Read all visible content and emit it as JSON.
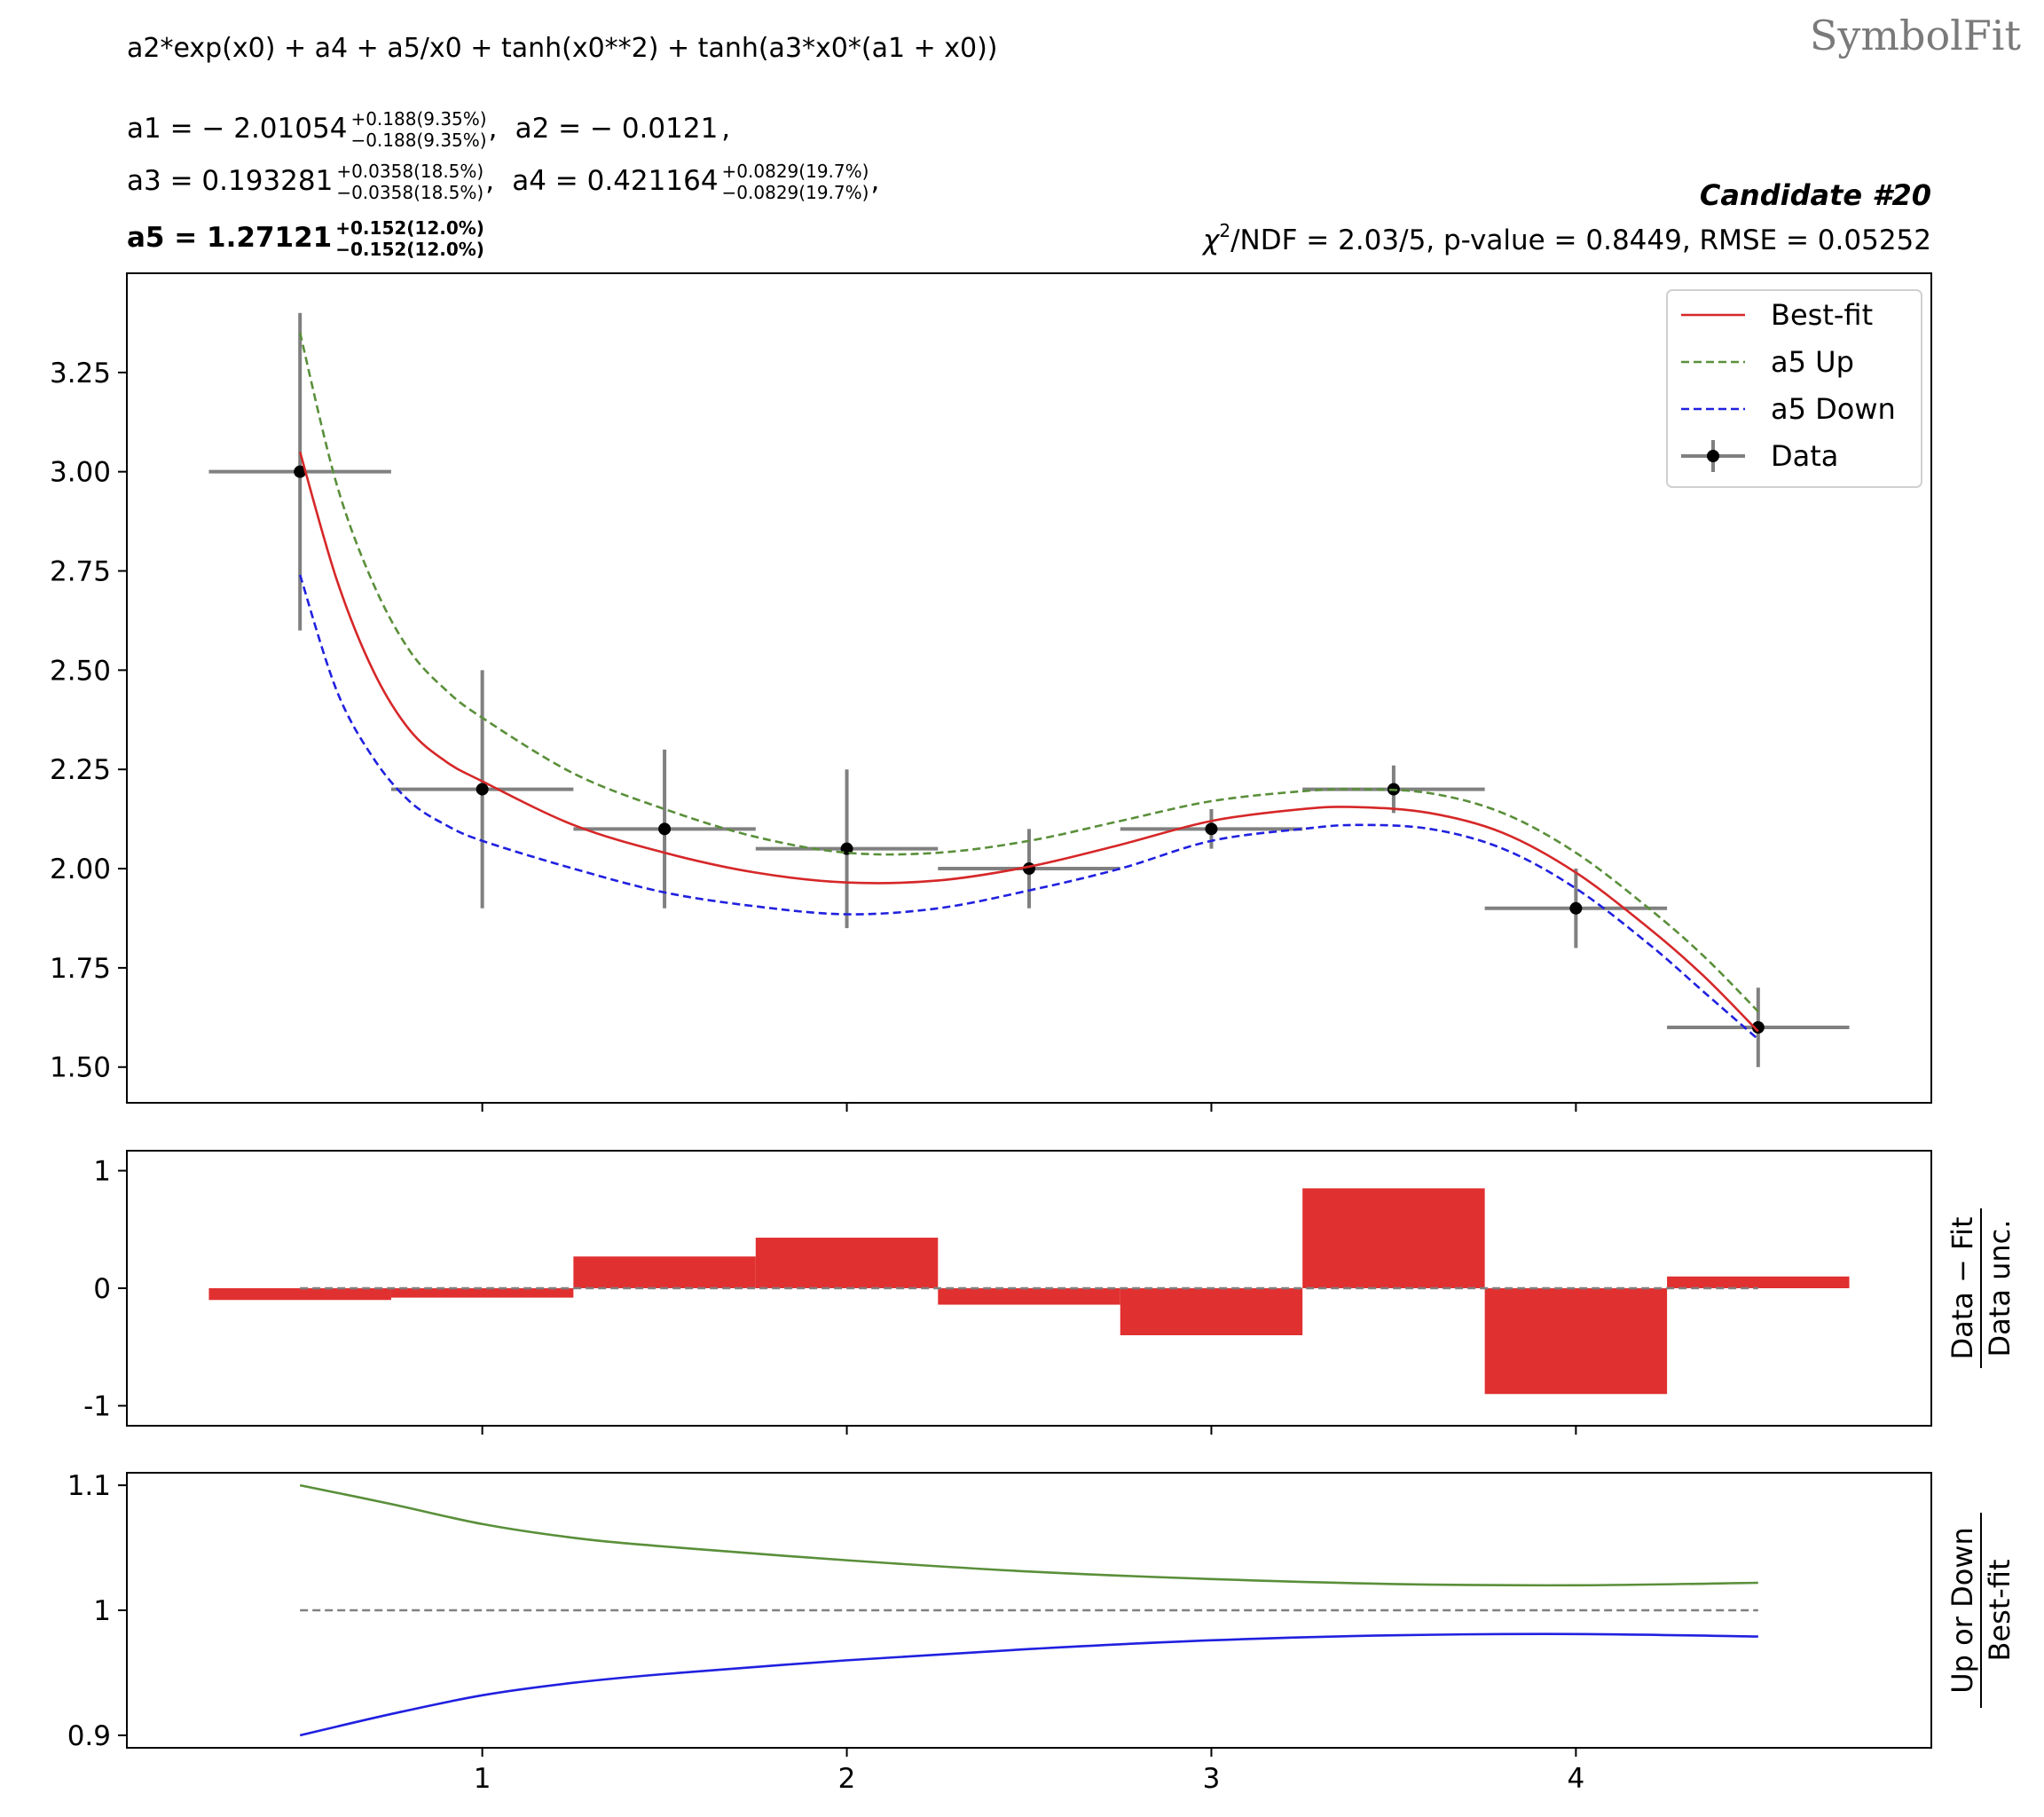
{
  "watermark": "SymbolFit",
  "header": {
    "formula": "a2*exp(x0) + a4 + a5/x0 + tanh(x0**2) + tanh(a3*x0*(a1 + x0))",
    "params": [
      {
        "name": "a1",
        "value": "− 2.01054",
        "up": "+0.188(9.35%)",
        "down": "−0.188(9.35%)",
        "bold": false
      },
      {
        "name": "a2",
        "value": "− 0.0121",
        "bold": false
      },
      {
        "name": "a3",
        "value": "0.193281",
        "up": "+0.0358(18.5%)",
        "down": "−0.0358(18.5%)",
        "bold": false
      },
      {
        "name": "a4",
        "value": "0.421164",
        "up": "+0.0829(19.7%)",
        "down": "−0.0829(19.7%)",
        "bold": false
      },
      {
        "name": "a5",
        "value": "1.27121",
        "up": "+0.152(12.0%)",
        "down": "−0.152(12.0%)",
        "bold": true
      }
    ],
    "candidate": "Candidate #20",
    "stats": "/NDF = 2.03/5, p-value = 0.8449, RMSE = 0.05252",
    "chi_symbol": "χ",
    "chi_sup": "2"
  },
  "colors": {
    "best_fit": "#d62728",
    "up": "#5a8f3a",
    "down": "#2020e0",
    "data": "#000000",
    "data_err": "#808080",
    "residual_bar": "#e03030",
    "ref_line": "#808080"
  },
  "chart_data": [
    {
      "type": "line",
      "panel": "main",
      "ylim": [
        1.41,
        3.5
      ],
      "xlim": [
        0.025,
        4.975
      ],
      "yticks": [
        "1.50",
        "1.75",
        "2.00",
        "2.25",
        "2.50",
        "2.75",
        "3.00",
        "3.25"
      ],
      "yticks_values": [
        1.5,
        1.75,
        2.0,
        2.25,
        2.5,
        2.75,
        3.0,
        3.25
      ],
      "legend": {
        "position": "top-right",
        "entries": [
          "Best-fit",
          "a5 Up",
          "a5 Down",
          "Data"
        ]
      },
      "data": {
        "name": "Data",
        "x": [
          0.5,
          1.0,
          1.5,
          2.0,
          2.5,
          3.0,
          3.5,
          4.0,
          4.5
        ],
        "y": [
          3.0,
          2.2,
          2.1,
          2.05,
          2.0,
          2.1,
          2.2,
          1.9,
          1.6
        ],
        "xerr": [
          0.25,
          0.25,
          0.25,
          0.25,
          0.25,
          0.25,
          0.25,
          0.25,
          0.25
        ],
        "yerr": [
          0.4,
          0.3,
          0.2,
          0.2,
          0.1,
          0.05,
          0.06,
          0.1,
          0.1
        ]
      },
      "series": [
        {
          "name": "Best-fit",
          "style": "solid",
          "x": [
            0.5,
            0.6,
            0.7,
            0.8,
            0.9,
            1.0,
            1.25,
            1.5,
            1.75,
            2.0,
            2.25,
            2.5,
            2.75,
            3.0,
            3.25,
            3.4,
            3.6,
            3.8,
            4.0,
            4.2,
            4.35,
            4.5
          ],
          "y": [
            3.05,
            2.73,
            2.5,
            2.35,
            2.27,
            2.22,
            2.11,
            2.04,
            1.99,
            1.965,
            1.97,
            2.005,
            2.06,
            2.12,
            2.15,
            2.155,
            2.14,
            2.09,
            1.99,
            1.85,
            1.73,
            1.59
          ]
        },
        {
          "name": "a5 Up",
          "style": "dashed",
          "x": [
            0.5,
            0.6,
            0.7,
            0.8,
            0.9,
            1.0,
            1.25,
            1.5,
            1.75,
            2.0,
            2.25,
            2.5,
            2.75,
            3.0,
            3.25,
            3.4,
            3.6,
            3.8,
            4.0,
            4.2,
            4.35,
            4.5
          ],
          "y": [
            3.35,
            2.97,
            2.72,
            2.55,
            2.45,
            2.38,
            2.24,
            2.15,
            2.08,
            2.04,
            2.04,
            2.07,
            2.12,
            2.17,
            2.195,
            2.2,
            2.19,
            2.14,
            2.04,
            1.9,
            1.78,
            1.64
          ]
        },
        {
          "name": "a5 Down",
          "style": "dashed",
          "x": [
            0.5,
            0.6,
            0.7,
            0.8,
            0.9,
            1.0,
            1.25,
            1.5,
            1.75,
            2.0,
            2.25,
            2.5,
            2.75,
            3.0,
            3.25,
            3.4,
            3.6,
            3.8,
            4.0,
            4.2,
            4.35,
            4.5
          ],
          "y": [
            2.74,
            2.45,
            2.28,
            2.17,
            2.11,
            2.07,
            2.0,
            1.94,
            1.905,
            1.885,
            1.9,
            1.945,
            2.0,
            2.07,
            2.1,
            2.11,
            2.1,
            2.05,
            1.95,
            1.81,
            1.69,
            1.57
          ]
        }
      ]
    },
    {
      "type": "bar",
      "panel": "residual",
      "ylabel": "Data − Fit / Data unc.",
      "ylabel_num": "Data − Fit",
      "ylabel_den": "Data unc.",
      "ylim": [
        -1.17,
        1.17
      ],
      "yticks": [
        "-1",
        "0",
        "1"
      ],
      "yticks_values": [
        -1,
        0,
        1
      ],
      "categories": [
        0.5,
        1.0,
        1.5,
        2.0,
        2.5,
        3.0,
        3.5,
        4.0,
        4.5
      ],
      "bin_width": 0.5,
      "values": [
        -0.1,
        -0.08,
        0.27,
        0.43,
        -0.14,
        -0.4,
        0.85,
        -0.9,
        0.1
      ],
      "reference": 0
    },
    {
      "type": "line",
      "panel": "ratio",
      "ylabel": "Up or Down / Best-fit",
      "ylabel_num": "Up or Down",
      "ylabel_den": "Best-fit",
      "ylim": [
        0.89,
        1.11
      ],
      "yticks": [
        "0.9",
        "1",
        "1.1"
      ],
      "yticks_values": [
        0.9,
        1.0,
        1.1
      ],
      "xticks": [
        "1",
        "2",
        "3",
        "4"
      ],
      "xticks_values": [
        1,
        2,
        3,
        4
      ],
      "reference": 1,
      "series": [
        {
          "name": "Up",
          "x": [
            0.5,
            0.75,
            1.0,
            1.25,
            1.5,
            2.0,
            2.5,
            3.0,
            3.5,
            4.0,
            4.5
          ],
          "y": [
            1.1,
            1.085,
            1.069,
            1.058,
            1.051,
            1.04,
            1.031,
            1.025,
            1.021,
            1.02,
            1.022
          ]
        },
        {
          "name": "Down",
          "x": [
            0.5,
            0.75,
            1.0,
            1.25,
            1.5,
            2.0,
            2.5,
            3.0,
            3.5,
            4.0,
            4.5
          ],
          "y": [
            0.9,
            0.917,
            0.932,
            0.942,
            0.949,
            0.96,
            0.969,
            0.976,
            0.98,
            0.981,
            0.979
          ]
        }
      ]
    }
  ]
}
